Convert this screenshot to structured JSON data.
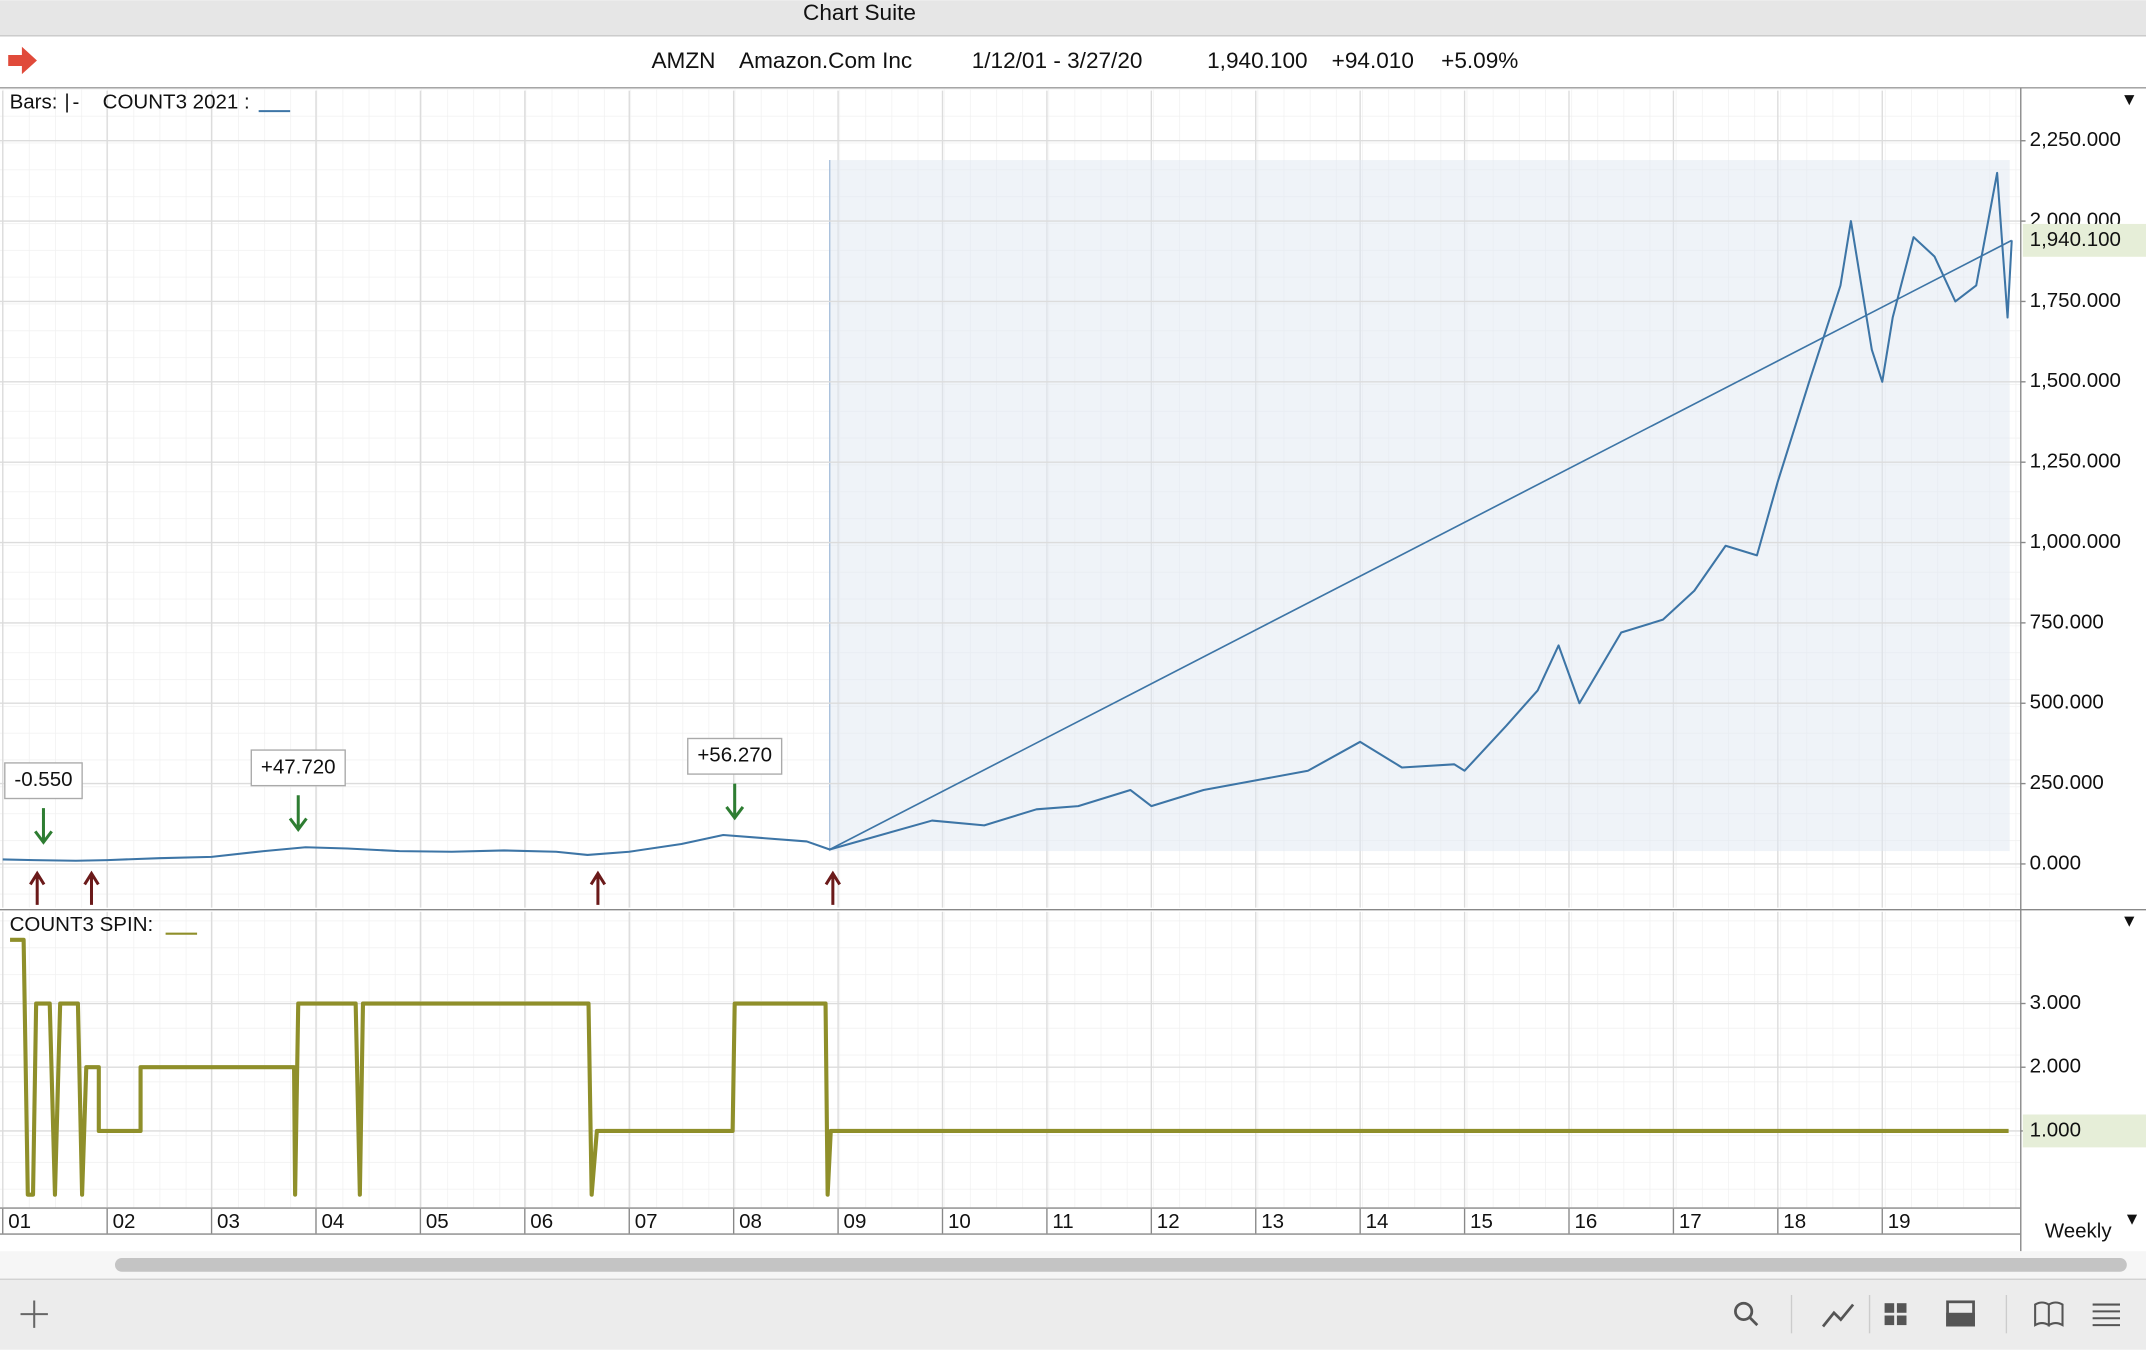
{
  "window": {
    "title": "Chart Suite"
  },
  "header": {
    "symbol": "AMZN",
    "name": "Amazon.Com Inc",
    "date_range": "1/12/01 - 3/27/20",
    "last": "1,940.100",
    "change": "+94.010",
    "change_pct": "+5.09%"
  },
  "bars_label": "Bars:",
  "periodicity": "Weekly",
  "chart_data": [
    {
      "type": "line",
      "label": "COUNT3 2021 :",
      "color": "#3d75a6",
      "x": [
        2001.0,
        2001.3,
        2001.7,
        2002.0,
        2002.5,
        2003.0,
        2003.5,
        2003.9,
        2004.3,
        2004.8,
        2005.3,
        2005.8,
        2006.3,
        2006.6,
        2007.0,
        2007.5,
        2007.9,
        2008.3,
        2008.7,
        2008.92,
        2009.3,
        2009.9,
        2010.4,
        2010.9,
        2011.3,
        2011.8,
        2012.0,
        2012.5,
        2013.0,
        2013.5,
        2014.0,
        2014.4,
        2014.9,
        2015.0,
        2015.4,
        2015.7,
        2015.9,
        2016.1,
        2016.5,
        2016.9,
        2017.2,
        2017.5,
        2017.8,
        2018.0,
        2018.3,
        2018.6,
        2018.7,
        2018.9,
        2019.0,
        2019.1,
        2019.3,
        2019.5,
        2019.7,
        2019.9,
        2020.1,
        2020.2,
        2020.24
      ],
      "values": [
        14,
        12,
        10,
        12,
        18,
        22,
        40,
        52,
        48,
        40,
        38,
        42,
        38,
        28,
        38,
        62,
        90,
        80,
        70,
        45,
        80,
        135,
        120,
        170,
        180,
        230,
        180,
        230,
        260,
        290,
        380,
        300,
        310,
        290,
        430,
        540,
        680,
        500,
        720,
        760,
        850,
        990,
        960,
        1190,
        1500,
        1800,
        2000,
        1600,
        1500,
        1700,
        1950,
        1890,
        1750,
        1800,
        2150,
        1700,
        1940
      ],
      "xlim": [
        2001.0,
        2020.32
      ],
      "ylim": [
        -136,
        2406
      ],
      "yticks": [
        {
          "value": 0,
          "label": "0.000"
        },
        {
          "value": 250,
          "label": "250.000"
        },
        {
          "value": 500,
          "label": "500.000"
        },
        {
          "value": 750,
          "label": "750.000"
        },
        {
          "value": 1000,
          "label": "1,000.000"
        },
        {
          "value": 1250,
          "label": "1,250.000"
        },
        {
          "value": 1500,
          "label": "1,500.000"
        },
        {
          "value": 1750,
          "label": "1,750.000"
        },
        {
          "value": 2000,
          "label": "2,000.000"
        },
        {
          "value": 2250,
          "label": "2,250.000"
        }
      ],
      "grid": true,
      "last_value": 1940.1,
      "last_value_label": "1,940.100",
      "highlight": {
        "x": [
          2008.92,
          2020.22
        ],
        "values": [
          40,
          2190
        ]
      },
      "trendline": {
        "x": [
          2008.92,
          2020.24
        ],
        "values": [
          45,
          1940
        ]
      },
      "annotations": [
        {
          "x": 2001.39,
          "value": 12,
          "label": "-0.550"
        },
        {
          "x": 2003.83,
          "value": 52,
          "label": "+47.720"
        },
        {
          "x": 2008.01,
          "value": 88,
          "label": "+56.270"
        }
      ],
      "signals_x": [
        2001.33,
        2001.85,
        2006.7,
        2008.95
      ]
    },
    {
      "type": "line",
      "label": "COUNT3 SPIN:",
      "color": "#8f8f2a",
      "x": [
        2001.07,
        2001.2,
        2001.24,
        2001.29,
        2001.32,
        2001.45,
        2001.5,
        2001.55,
        2001.72,
        2001.76,
        2001.8,
        2001.84,
        2001.92,
        2001.92,
        2002.32,
        2002.32,
        2003.79,
        2003.8,
        2003.83,
        2004.38,
        2004.42,
        2004.45,
        2006.61,
        2006.64,
        2006.69,
        2007.99,
        2008.01,
        2008.88,
        2008.9,
        2008.93,
        2020.21
      ],
      "values": [
        4,
        4,
        0,
        0,
        3,
        3,
        0,
        3,
        3,
        0,
        2,
        2,
        2,
        1,
        1,
        2,
        2,
        0,
        3,
        3,
        0,
        3,
        3,
        0,
        1,
        1,
        3,
        3,
        0,
        1,
        1
      ],
      "xlim": [
        2001.0,
        2020.32
      ],
      "ylim": [
        -0.2,
        4.44
      ],
      "yticks": [
        {
          "value": 1,
          "label": "1.000"
        },
        {
          "value": 2,
          "label": "2.000"
        },
        {
          "value": 3,
          "label": "3.000"
        }
      ],
      "xticks": [
        {
          "value": 2001,
          "label": "01"
        },
        {
          "value": 2002,
          "label": "02"
        },
        {
          "value": 2003,
          "label": "03"
        },
        {
          "value": 2004,
          "label": "04"
        },
        {
          "value": 2005,
          "label": "05"
        },
        {
          "value": 2006,
          "label": "06"
        },
        {
          "value": 2007,
          "label": "07"
        },
        {
          "value": 2008,
          "label": "08"
        },
        {
          "value": 2009,
          "label": "09"
        },
        {
          "value": 2010,
          "label": "10"
        },
        {
          "value": 2011,
          "label": "11"
        },
        {
          "value": 2012,
          "label": "12"
        },
        {
          "value": 2013,
          "label": "13"
        },
        {
          "value": 2014,
          "label": "14"
        },
        {
          "value": 2015,
          "label": "15"
        },
        {
          "value": 2016,
          "label": "16"
        },
        {
          "value": 2017,
          "label": "17"
        },
        {
          "value": 2018,
          "label": "18"
        },
        {
          "value": 2019,
          "label": "19"
        }
      ],
      "grid": true,
      "last_value": 1,
      "last_value_label": "1.000"
    }
  ]
}
